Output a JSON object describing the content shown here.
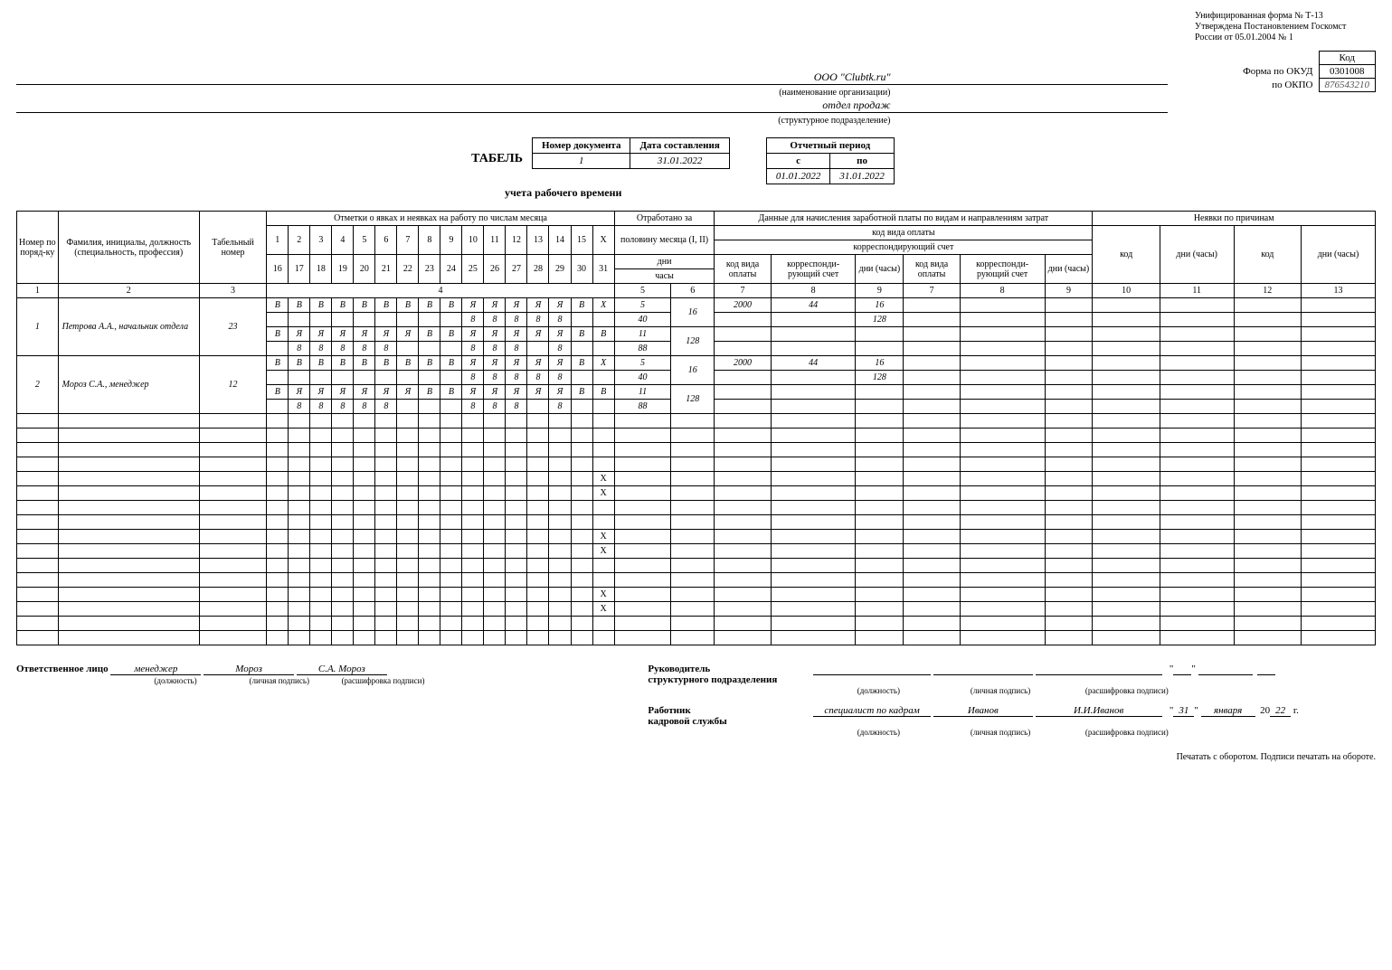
{
  "form_note": {
    "l1": "Унифицированная форма № Т-13",
    "l2": "Утверждена Постановлением Госкомст",
    "l3": "России от 05.01.2004 № 1"
  },
  "codes": {
    "kod_label": "Код",
    "okud_label": "Форма по ОКУД",
    "okud_val": "0301008",
    "okpo_label": "по ОКПО",
    "okpo_val": "876543210"
  },
  "org": {
    "name": "ООО \"Clubtk.ru\"",
    "name_caption": "(наименование организации)",
    "dept": "отдел продаж",
    "dept_caption": "(структурное подразделение)"
  },
  "doc": {
    "title": "ТАБЕЛЬ",
    "subtitle": "учета   рабочего времени",
    "num_hdr": "Номер документа",
    "date_hdr": "Дата составления",
    "period_hdr": "Отчетный период",
    "from_hdr": "с",
    "to_hdr": "по",
    "num": "1",
    "date": "31.01.2022",
    "from": "01.01.2022",
    "to": "31.01.2022"
  },
  "headers": {
    "c1": "Номер по поряд-ку",
    "c2": "Фамилия, инициалы, должность (специальность, профессия)",
    "c3": "Табельный номер",
    "c4": "Отметки о явках и неявках на работу по числам месяца",
    "c5a": "Отработано за",
    "c5b": "половину месяца (I, II)",
    "c5c": "дни",
    "c5d": "часы",
    "c6a": "Данные для начисления заработной платы по видам и направлениям затрат",
    "c6b": "код вида оплаты",
    "c6c": "корреспондирующий счет",
    "c7": "код вида оплаты",
    "c8": "корреспонди-рующий счет",
    "c9": "дни (часы)",
    "c10a": "Неявки по причинам",
    "c10b": "код",
    "c10c": "дни (часы)",
    "nums": [
      "1",
      "2",
      "3",
      "4",
      "5",
      "6",
      "7",
      "8",
      "9",
      "7",
      "8",
      "9",
      "10",
      "11",
      "12",
      "13"
    ]
  },
  "days": {
    "r1": [
      "1",
      "2",
      "3",
      "4",
      "5",
      "6",
      "7",
      "8",
      "9",
      "10",
      "11",
      "12",
      "13",
      "14",
      "15",
      "X"
    ],
    "r2": [
      "16",
      "17",
      "18",
      "19",
      "20",
      "21",
      "22",
      "23",
      "24",
      "25",
      "26",
      "27",
      "28",
      "29",
      "30",
      "31"
    ]
  },
  "employees": [
    {
      "n": "1",
      "name": "Петрова А.А., начальник отдела",
      "tab": "23",
      "r1": [
        "В",
        "В",
        "В",
        "В",
        "В",
        "В",
        "В",
        "В",
        "В",
        "Я",
        "Я",
        "Я",
        "Я",
        "Я",
        "В",
        "X"
      ],
      "r2": [
        "",
        "",
        "",
        "",
        "",
        "",
        "",
        "",
        "",
        "8",
        "8",
        "8",
        "8",
        "8",
        "",
        ""
      ],
      "r3": [
        "В",
        "Я",
        "Я",
        "Я",
        "Я",
        "Я",
        "Я",
        "В",
        "В",
        "Я",
        "Я",
        "Я",
        "Я",
        "Я",
        "В",
        "В",
        "Я"
      ],
      "r4": [
        "",
        "8",
        "8",
        "8",
        "8",
        "8",
        "",
        "",
        "",
        "8",
        "8",
        "8",
        "",
        "8",
        "",
        "",
        "8"
      ],
      "half1_d": "5",
      "half1_h": "16",
      "half2_d": "40",
      "month_d": "11",
      "month_h": "128",
      "total_h": "88",
      "pay_code": "2000",
      "corr": "44",
      "dh1": "16",
      "dh2": "128"
    },
    {
      "n": "2",
      "name": "Мороз С.А., менеджер",
      "tab": "12",
      "r1": [
        "В",
        "В",
        "В",
        "В",
        "В",
        "В",
        "В",
        "В",
        "В",
        "Я",
        "Я",
        "Я",
        "Я",
        "Я",
        "В",
        "X"
      ],
      "r2": [
        "",
        "",
        "",
        "",
        "",
        "",
        "",
        "",
        "",
        "8",
        "8",
        "8",
        "8",
        "8",
        "",
        ""
      ],
      "r3": [
        "В",
        "Я",
        "Я",
        "Я",
        "Я",
        "Я",
        "Я",
        "В",
        "В",
        "Я",
        "Я",
        "Я",
        "Я",
        "Я",
        "В",
        "В",
        "Я"
      ],
      "r4": [
        "",
        "8",
        "8",
        "8",
        "8",
        "8",
        "",
        "",
        "",
        "8",
        "8",
        "8",
        "",
        "8",
        "",
        "",
        "8"
      ],
      "half1_d": "5",
      "half1_h": "16",
      "half2_d": "40",
      "month_d": "11",
      "month_h": "128",
      "total_h": "88",
      "pay_code": "2000",
      "corr": "44",
      "dh1": "16",
      "dh2": "128"
    }
  ],
  "footer": {
    "resp_label": "Ответственное лицо",
    "resp_pos": "менеджер",
    "resp_sign": "Мороз",
    "resp_name": "С.А. Мороз",
    "pos_cap": "(должность)",
    "sign_cap": "(личная подпись)",
    "name_cap": "(расшифровка подписи)",
    "head_label1": "Руководитель",
    "head_label2": "структурного подразделения",
    "hr_label1": "Работник",
    "hr_label2": "кадровой службы",
    "hr_pos": "специалист по кадрам",
    "hr_sign": "Иванов",
    "hr_name": "И.И.Иванов",
    "date_d": "31",
    "date_m": "января",
    "date_y": "22",
    "yr_prefix": "20",
    "g": "г.",
    "quote": "\"",
    "note": "Печатать с оборотом. Подписи печатать на обороте."
  }
}
